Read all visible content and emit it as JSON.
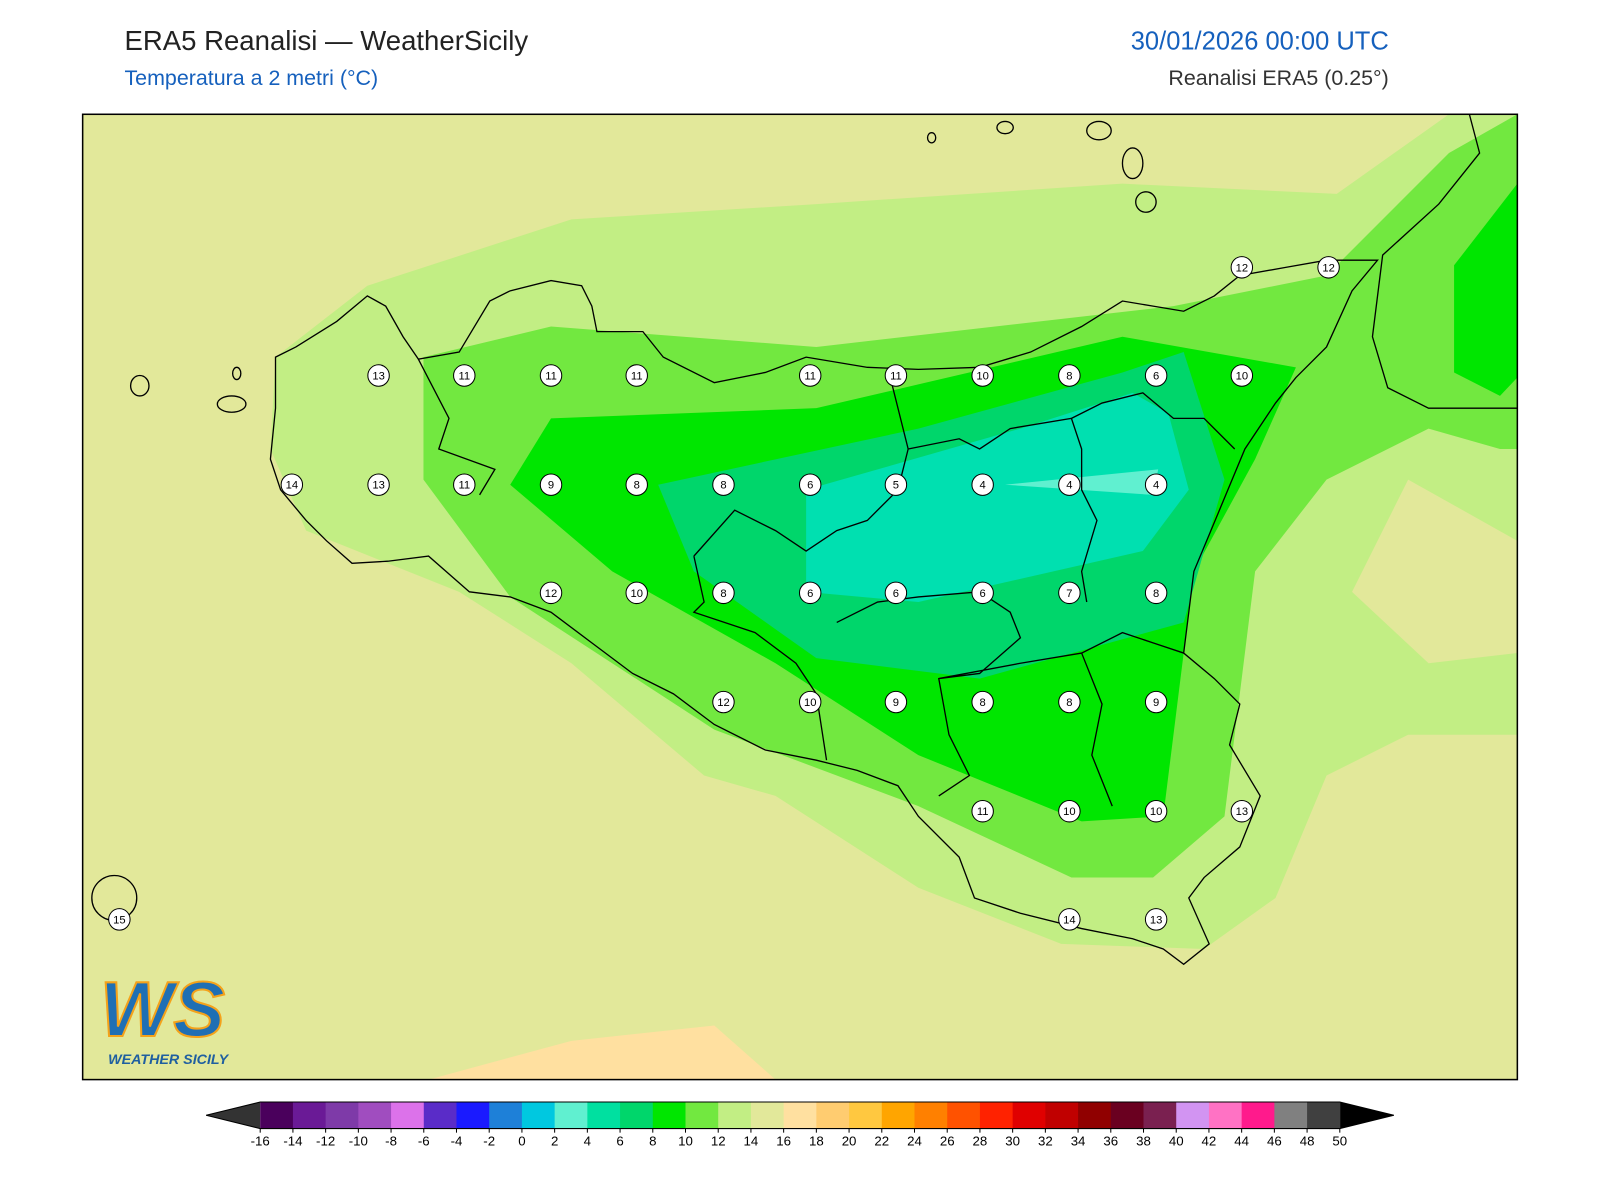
{
  "header": {
    "title": "ERA5 Reanalisi — WeatherSicily",
    "subtitle": "Temperatura a 2 metri (°C)",
    "date": "30/01/2026 00:00 UTC",
    "source": "Reanalisi ERA5 (0.25°)"
  },
  "stations": [
    13,
    11,
    11,
    11,
    11,
    11,
    10,
    8,
    6,
    10,
    14,
    13,
    11,
    9,
    8,
    8,
    6,
    5,
    4,
    4,
    4,
    12,
    10,
    8,
    6,
    6,
    6,
    7,
    8,
    12,
    10,
    9,
    8,
    8,
    9,
    11,
    10,
    10,
    13,
    15,
    14,
    13,
    12,
    12
  ],
  "colorbar": {
    "ticks": [
      -16,
      -14,
      -12,
      -10,
      -8,
      -6,
      -4,
      -2,
      0,
      2,
      4,
      6,
      8,
      10,
      12,
      14,
      16,
      18,
      20,
      22,
      24,
      26,
      28,
      30,
      32,
      34,
      36,
      38,
      40,
      42,
      44,
      46,
      48,
      50
    ],
    "colors": [
      "#4a005c",
      "#6a1a96",
      "#7e3aa8",
      "#a04dbf",
      "#dc72ea",
      "#5a2cc8",
      "#1a1aff",
      "#1e80d8",
      "#00c8e0",
      "#60f0d0",
      "#00e0a0",
      "#00d66b",
      "#00e600",
      "#72e840",
      "#c2ee84",
      "#e2e89a",
      "#ffe0a0",
      "#ffcc70",
      "#ffc840",
      "#ffa500",
      "#ff8000",
      "#ff5200",
      "#ff2200",
      "#e00000",
      "#c00000",
      "#900000",
      "#6a0020",
      "#7a2050",
      "#d294f2",
      "#ff72c4",
      "#ff1a8c",
      "#808080",
      "#404040"
    ],
    "under_color": "#333333",
    "over_color": "#000000"
  },
  "logo": {
    "mark": "WS",
    "text": "WEATHER SICILY"
  }
}
